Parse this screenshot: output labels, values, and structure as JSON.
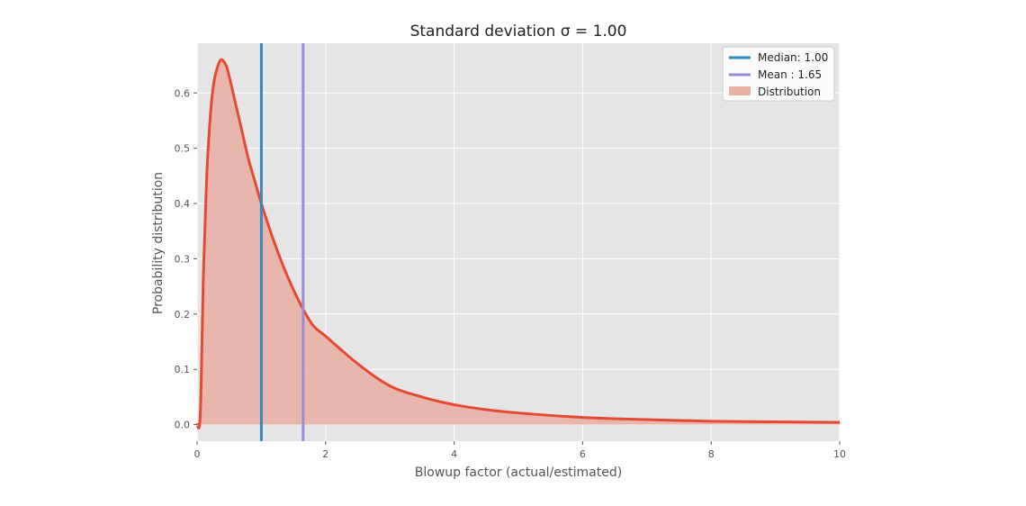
{
  "chart_data": {
    "type": "line",
    "title": "Standard deviation σ = 1.00",
    "xlabel": "Blowup factor (actual/estimated)",
    "ylabel": "Probability distribution",
    "xlim": [
      0,
      10
    ],
    "ylim": [
      -0.03,
      0.69
    ],
    "xticks": [
      0,
      2,
      4,
      6,
      8,
      10
    ],
    "xtick_labels": [
      "0",
      "2",
      "4",
      "6",
      "8",
      "10"
    ],
    "yticks": [
      0.0,
      0.1,
      0.2,
      0.3,
      0.4,
      0.5,
      0.6
    ],
    "ytick_labels": [
      "0.0",
      "0.1",
      "0.2",
      "0.3",
      "0.4",
      "0.5",
      "0.6"
    ],
    "grid": true,
    "legend_position": "top-right",
    "series": [
      {
        "name": "Distribution",
        "kind": "area-line",
        "line_color": "#e24a33",
        "fill_color": "#e9b0a6",
        "x": [
          0.0,
          0.05,
          0.1,
          0.15,
          0.2,
          0.25,
          0.3,
          0.37,
          0.45,
          0.5,
          0.6,
          0.7,
          0.8,
          0.9,
          1.0,
          1.2,
          1.4,
          1.6,
          1.8,
          2.0,
          2.5,
          3.0,
          3.5,
          4.0,
          4.5,
          5.0,
          6.0,
          7.0,
          8.0,
          9.0,
          10.0
        ],
        "y": [
          0.0,
          0.02,
          0.28,
          0.45,
          0.55,
          0.61,
          0.64,
          0.66,
          0.65,
          0.63,
          0.58,
          0.53,
          0.48,
          0.44,
          0.4,
          0.33,
          0.27,
          0.22,
          0.18,
          0.16,
          0.11,
          0.07,
          0.05,
          0.036,
          0.027,
          0.021,
          0.013,
          0.009,
          0.006,
          0.005,
          0.004
        ]
      }
    ],
    "vlines": [
      {
        "name": "Median: 1.00",
        "x": 1.0,
        "color": "#348abd"
      },
      {
        "name": "Mean : 1.65",
        "x": 1.65,
        "color": "#988ed5"
      }
    ],
    "colors": {
      "plot_background": "#e5e5e5",
      "grid": "#ffffff"
    }
  }
}
